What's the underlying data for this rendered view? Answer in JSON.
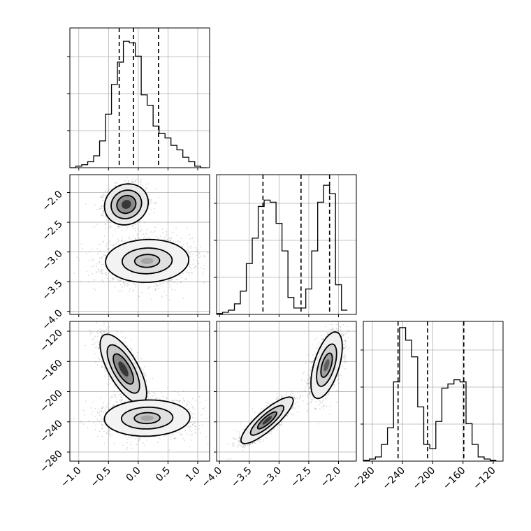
{
  "chart_data": {
    "type": "corner",
    "n_params": 3,
    "param_ranges": [
      [
        -1.15,
        1.2
      ],
      [
        -4.05,
        -1.7
      ],
      [
        -292,
        -107
      ]
    ],
    "ticks": [
      [
        -1.0,
        -0.5,
        0.0,
        0.5,
        1.0
      ],
      [
        -4.0,
        -3.5,
        -3.0,
        -2.5,
        -2.0
      ],
      [
        -280,
        -240,
        -200,
        -160,
        -120
      ]
    ],
    "tick_labels": [
      [
        "−1.0",
        "−0.5",
        "0.0",
        "0.5",
        "1.0"
      ],
      [
        "−4.0",
        "−3.5",
        "−3.0",
        "−2.5",
        "−2.0"
      ],
      [
        "−280",
        "−240",
        "−200",
        "−160",
        "−120"
      ]
    ],
    "histograms": [
      {
        "bin_edges": [
          -1.15,
          -1.05,
          -0.95,
          -0.85,
          -0.75,
          -0.65,
          -0.55,
          -0.45,
          -0.35,
          -0.25,
          -0.15,
          -0.05,
          0.05,
          0.15,
          0.25,
          0.35,
          0.45,
          0.55,
          0.65,
          0.75,
          0.85,
          0.95,
          1.05,
          1.15
        ],
        "counts": [
          0,
          5,
          10,
          20,
          40,
          90,
          180,
          280,
          355,
          425,
          420,
          375,
          245,
          210,
          140,
          115,
          100,
          75,
          60,
          35,
          20,
          5,
          0
        ],
        "quantiles": [
          -0.32,
          -0.08,
          0.34
        ],
        "ymax": 470
      },
      {
        "bin_edges": [
          -4.05,
          -3.95,
          -3.85,
          -3.75,
          -3.65,
          -3.55,
          -3.45,
          -3.35,
          -3.25,
          -3.15,
          -3.05,
          -2.95,
          -2.85,
          -2.75,
          -2.65,
          -2.55,
          -2.45,
          -2.35,
          -2.25,
          -2.15,
          -2.05,
          -1.95,
          -1.85
        ],
        "counts": [
          2,
          5,
          10,
          25,
          55,
          120,
          180,
          255,
          270,
          265,
          215,
          150,
          40,
          15,
          15,
          60,
          150,
          265,
          305,
          285,
          70,
          10
        ],
        "quantiles": [
          -3.27,
          -2.63,
          -2.15
        ],
        "ymax": 330
      },
      {
        "bin_edges": [
          -292,
          -284,
          -276,
          -268,
          -260,
          -252,
          -244,
          -236,
          -228,
          -220,
          -212,
          -204,
          -196,
          -188,
          -180,
          -172,
          -164,
          -156,
          -148,
          -140,
          -132,
          -124,
          -116
        ],
        "counts": [
          2,
          5,
          10,
          40,
          80,
          190,
          320,
          290,
          250,
          130,
          40,
          30,
          95,
          175,
          185,
          195,
          190,
          90,
          40,
          10,
          5,
          2
        ],
        "quantiles": [
          -246,
          -207,
          -159
        ],
        "ymax": 335
      }
    ],
    "scatter_panels": [
      {
        "row": 1,
        "col": 0,
        "clusters": [
          {
            "mean": [
              -0.2,
              -2.2
            ],
            "sd": [
              0.16,
              0.15
            ],
            "rho": 0.1,
            "weight": 0.5,
            "contour_levels": [
              1,
              1.6,
              2.3
            ],
            "density_peak": 1.0
          },
          {
            "mean": [
              0.15,
              -3.15
            ],
            "sd": [
              0.35,
              0.18
            ],
            "rho": 0.05,
            "weight": 0.5,
            "contour_levels": [
              0.6,
              1.2,
              2.0
            ],
            "density_peak": 0.45
          }
        ]
      },
      {
        "row": 2,
        "col": 0,
        "clusters": [
          {
            "mean": [
              -0.25,
              -170
            ],
            "sd": [
              0.17,
              20
            ],
            "rho": -0.7,
            "weight": 0.5,
            "contour_levels": [
              1,
              1.6,
              2.3
            ],
            "density_peak": 1.0
          },
          {
            "mean": [
              0.15,
              -235
            ],
            "sd": [
              0.36,
              12
            ],
            "rho": 0.05,
            "weight": 0.5,
            "contour_levels": [
              0.6,
              1.2,
              2.0
            ],
            "density_peak": 0.45
          }
        ]
      },
      {
        "row": 2,
        "col": 1,
        "clusters": [
          {
            "mean": [
              -3.2,
              -238
            ],
            "sd": [
              0.2,
              14
            ],
            "rho": 0.85,
            "weight": 0.5,
            "contour_levels": [
              0.8,
              1.4,
              2.2
            ],
            "density_peak": 1.0
          },
          {
            "mean": [
              -2.2,
              -165
            ],
            "sd": [
              0.12,
              20
            ],
            "rho": 0.55,
            "weight": 0.5,
            "contour_levels": [
              0.8,
              1.4,
              2.2
            ],
            "density_peak": 0.8
          }
        ]
      }
    ]
  }
}
